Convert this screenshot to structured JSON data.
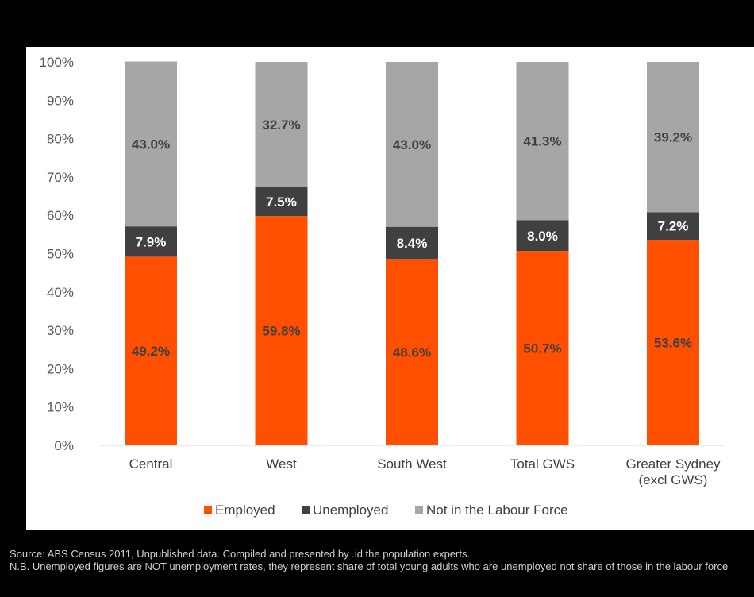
{
  "chart_data": {
    "type": "bar",
    "stacked": true,
    "categories": [
      [
        "Central"
      ],
      [
        "West"
      ],
      [
        "South West"
      ],
      [
        "Total GWS"
      ],
      [
        "Greater Sydney",
        "(excl GWS)"
      ]
    ],
    "series": [
      {
        "name": "Employed",
        "values": [
          49.2,
          59.8,
          48.6,
          50.7,
          53.6
        ],
        "labels": [
          "49.2%",
          "59.8%",
          "48.6%",
          "50.7%",
          "53.6%"
        ],
        "color": "#ff4f00",
        "label_color": "#404040"
      },
      {
        "name": "Unemployed",
        "values": [
          7.9,
          7.5,
          8.4,
          8.0,
          7.2
        ],
        "labels": [
          "7.9%",
          "7.5%",
          "8.4%",
          "8.0%",
          "7.2%"
        ],
        "color": "#404040",
        "label_color": "#ffffff"
      },
      {
        "name": "Not in the Labour Force",
        "values": [
          43.0,
          32.7,
          43.0,
          41.3,
          39.2
        ],
        "labels": [
          "43.0%",
          "32.7%",
          "43.0%",
          "41.3%",
          "39.2%"
        ],
        "color": "#a6a6a6",
        "label_color": "#404040"
      }
    ],
    "y_ticks": [
      "0%",
      "10%",
      "20%",
      "30%",
      "40%",
      "50%",
      "60%",
      "70%",
      "80%",
      "90%",
      "100%"
    ],
    "ylim": [
      0,
      100
    ],
    "grid": false,
    "legend_position": "bottom"
  },
  "footnotes": {
    "source": "Source: ABS Census 2011, Unpublished data. Compiled and presented by .id the population experts.",
    "note": "N.B. Unemployed figures are NOT unemployment rates, they represent share of total young adults who are unemployed not share of those in the labour force"
  }
}
